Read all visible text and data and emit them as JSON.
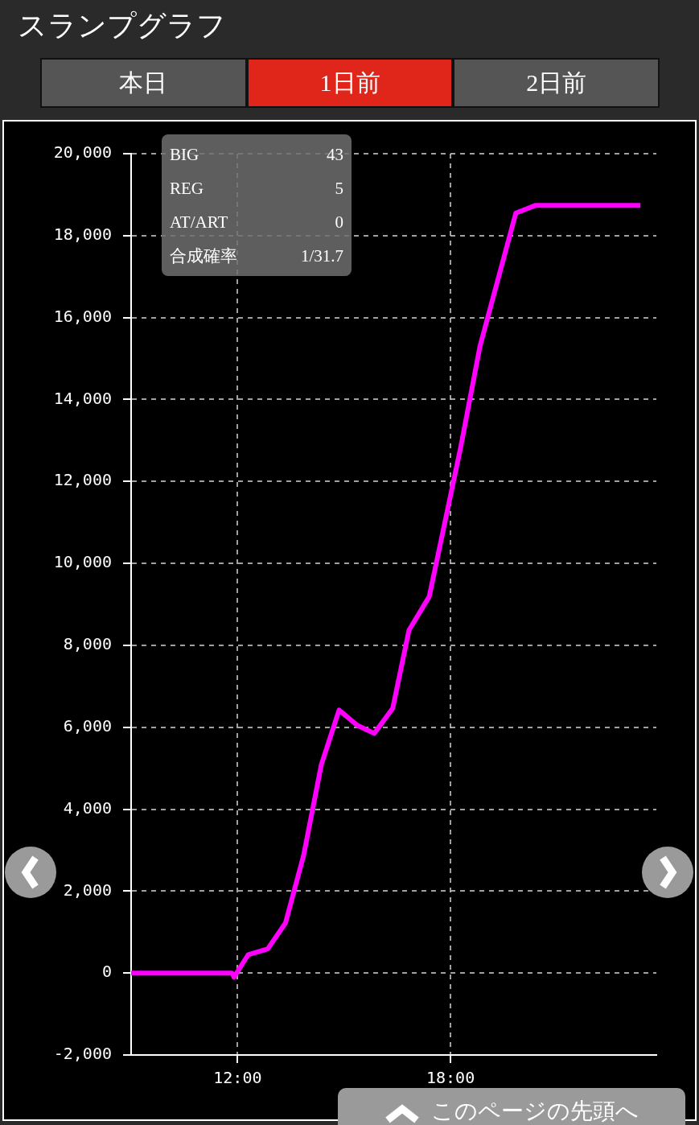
{
  "chart_data": {
    "type": "line",
    "title": "スランプグラフ",
    "annotations": [
      "本日",
      "1日前",
      "2日前",
      "BIG",
      "43",
      "REG",
      "5",
      "AT/ART",
      "0",
      "合成確率",
      "1/31.7",
      "このページの先頭へ"
    ],
    "x": [
      9,
      11.84,
      11.9,
      12.3,
      12.85,
      13.35,
      13.86,
      14.36,
      14.86,
      15.37,
      15.85,
      16.37,
      16.83,
      17.4,
      18.29,
      18.83,
      19.84,
      20.4,
      23.35
    ],
    "series": [
      {
        "color": "#ff00ff",
        "values": [
          0,
          0,
          -100,
          450,
          590,
          1220,
          2870,
          5090,
          6420,
          6050,
          5850,
          6460,
          8370,
          9190,
          12850,
          15300,
          18550,
          18740,
          18740
        ]
      }
    ],
    "xlim": [
      9,
      23.8
    ],
    "xticks": [
      {
        "value": 12,
        "label": "12:00"
      },
      {
        "value": 18,
        "label": "18:00"
      }
    ],
    "ylim": [
      -2000,
      20000
    ],
    "yticks": [
      {
        "value": -2000,
        "label": "-2,000"
      },
      {
        "value": 0,
        "label": "0"
      },
      {
        "value": 2000,
        "label": "2,000"
      },
      {
        "value": 4000,
        "label": "4,000"
      },
      {
        "value": 6000,
        "label": "6,000"
      },
      {
        "value": 8000,
        "label": "8,000"
      },
      {
        "value": 10000,
        "label": "10,000"
      },
      {
        "value": 12000,
        "label": "12,000"
      },
      {
        "value": 14000,
        "label": "14,000"
      },
      {
        "value": 16000,
        "label": "16,000"
      },
      {
        "value": 18000,
        "label": "18,000"
      },
      {
        "value": 20000,
        "label": "20,000"
      }
    ],
    "grid": true,
    "legend": false,
    "marker": "none",
    "line_style": "solid"
  }
}
